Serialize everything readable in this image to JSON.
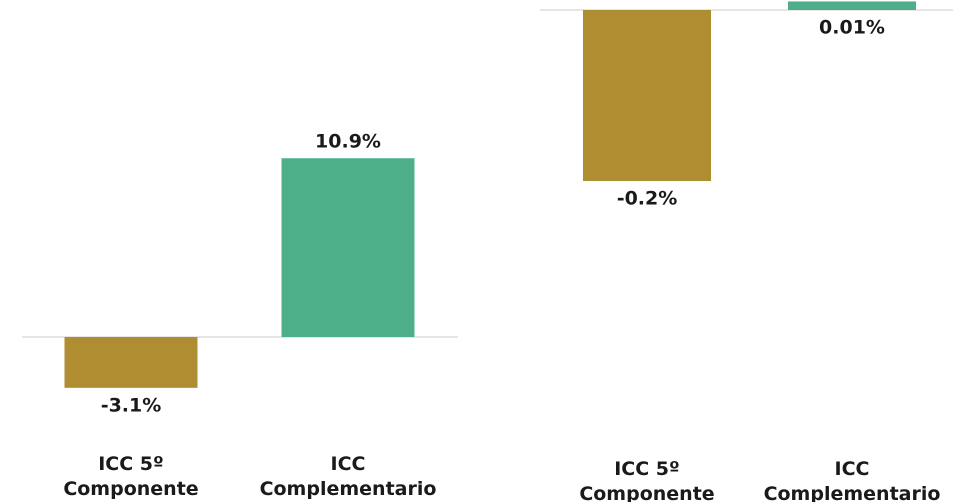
{
  "chart_data": [
    {
      "type": "bar",
      "categories": [
        "ICC 5º Componente",
        "ICC Complementario"
      ],
      "values": [
        -3.1,
        10.9
      ],
      "value_labels": [
        "-3.1%",
        "10.9%"
      ],
      "colors": [
        "#b08d30",
        "#4caf8a"
      ]
    },
    {
      "type": "bar",
      "categories": [
        "ICC 5º Componente",
        "ICC Complementario"
      ],
      "values": [
        -0.2,
        0.01
      ],
      "value_labels": [
        "-0.2%",
        "0.01%"
      ],
      "colors": [
        "#b08d30",
        "#4caf8a"
      ]
    }
  ]
}
